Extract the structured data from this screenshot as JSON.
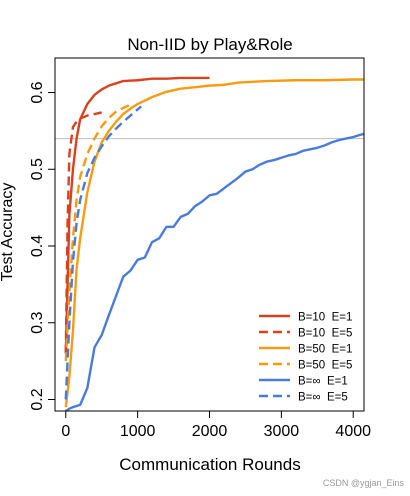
{
  "chart_data": {
    "type": "line",
    "title": "Non-IID by Play&Role",
    "xlabel": "Communication Rounds",
    "ylabel": "Test Accuracy",
    "xlim": [
      -150,
      4150
    ],
    "ylim": [
      0.185,
      0.645
    ],
    "xticks": [
      0,
      1000,
      2000,
      3000,
      4000
    ],
    "yticks": [
      0.2,
      0.3,
      0.4,
      0.5,
      0.6
    ],
    "xtick_labels": [
      "0",
      "1000",
      "2000",
      "3000",
      "4000"
    ],
    "ytick_labels": [
      "0.2",
      "0.3",
      "0.4",
      "0.5",
      "0.6"
    ],
    "reference_line": 0.54,
    "legend_position": "bottom-right",
    "grid": false,
    "series": [
      {
        "name": "B=10  E=1",
        "color": "#d8431f",
        "dash": "solid",
        "x": [
          0,
          50,
          100,
          150,
          200,
          300,
          400,
          500,
          600,
          700,
          800,
          1000,
          1200,
          1400,
          1600,
          1800,
          2000
        ],
        "y": [
          0.26,
          0.44,
          0.5,
          0.54,
          0.565,
          0.585,
          0.597,
          0.604,
          0.609,
          0.612,
          0.615,
          0.616,
          0.618,
          0.618,
          0.619,
          0.619,
          0.619
        ]
      },
      {
        "name": "B=10  E=5",
        "color": "#d8431f",
        "dash": "dashed",
        "x": [
          0,
          25,
          50,
          100,
          150,
          200,
          300,
          400,
          500
        ],
        "y": [
          0.26,
          0.43,
          0.52,
          0.555,
          0.562,
          0.566,
          0.57,
          0.572,
          0.574
        ]
      },
      {
        "name": "B=50  E=1",
        "color": "#f79b13",
        "dash": "solid",
        "x": [
          0,
          50,
          100,
          150,
          200,
          300,
          400,
          500,
          600,
          700,
          800,
          900,
          1000,
          1200,
          1400,
          1600,
          1800,
          2000,
          2200,
          2400,
          2800,
          3200,
          3600,
          4000,
          4150
        ],
        "y": [
          0.19,
          0.23,
          0.29,
          0.37,
          0.41,
          0.47,
          0.51,
          0.535,
          0.55,
          0.562,
          0.572,
          0.579,
          0.585,
          0.594,
          0.601,
          0.605,
          0.607,
          0.609,
          0.61,
          0.613,
          0.615,
          0.616,
          0.616,
          0.617,
          0.617
        ]
      },
      {
        "name": "B=50  E=5",
        "color": "#f79b13",
        "dash": "dashed",
        "x": [
          0,
          50,
          100,
          150,
          200,
          300,
          400,
          500,
          600,
          700,
          800,
          900
        ],
        "y": [
          0.25,
          0.34,
          0.41,
          0.46,
          0.49,
          0.52,
          0.54,
          0.556,
          0.567,
          0.575,
          0.58,
          0.584
        ]
      },
      {
        "name": "B=∞  E=1",
        "color": "#4a7bd9",
        "dash": "solid",
        "x": [
          0,
          50,
          100,
          200,
          300,
          400,
          500,
          600,
          700,
          800,
          900,
          1000,
          1100,
          1200,
          1300,
          1400,
          1500,
          1600,
          1700,
          1800,
          1900,
          2000,
          2100,
          2200,
          2300,
          2400,
          2500,
          2600,
          2700,
          2800,
          2900,
          3000,
          3100,
          3200,
          3300,
          3400,
          3500,
          3600,
          3700,
          3800,
          3900,
          4000,
          4100,
          4150
        ],
        "y": [
          0.185,
          0.188,
          0.19,
          0.193,
          0.215,
          0.268,
          0.284,
          0.31,
          0.335,
          0.36,
          0.368,
          0.382,
          0.385,
          0.405,
          0.41,
          0.425,
          0.425,
          0.438,
          0.442,
          0.452,
          0.458,
          0.466,
          0.468,
          0.475,
          0.482,
          0.489,
          0.497,
          0.5,
          0.506,
          0.51,
          0.512,
          0.515,
          0.518,
          0.52,
          0.524,
          0.526,
          0.528,
          0.531,
          0.535,
          0.538,
          0.54,
          0.542,
          0.545,
          0.546
        ]
      },
      {
        "name": "B=∞  E=5",
        "color": "#4a7bd9",
        "dash": "dashed",
        "x": [
          0,
          50,
          100,
          150,
          200,
          300,
          400,
          500,
          600,
          700,
          800,
          900,
          1000,
          1050
        ],
        "y": [
          0.2,
          0.3,
          0.38,
          0.43,
          0.46,
          0.495,
          0.515,
          0.53,
          0.543,
          0.553,
          0.562,
          0.57,
          0.578,
          0.582
        ]
      }
    ]
  },
  "watermark": "CSDN @ygjan_Eins"
}
